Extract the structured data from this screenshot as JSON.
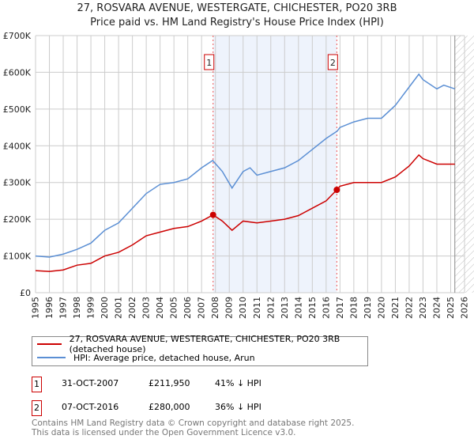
{
  "chart_data": {
    "type": "line",
    "title": "27, ROSVARA AVENUE, WESTERGATE, CHICHESTER, PO20 3RB",
    "subtitle": "Price paid vs. HM Land Registry's House Price Index (HPI)",
    "xlim": [
      1995,
      2026
    ],
    "ylim": [
      0,
      700000
    ],
    "x_ticks": [
      "1995",
      "1996",
      "1997",
      "1998",
      "1999",
      "2000",
      "2001",
      "2002",
      "2003",
      "2004",
      "2005",
      "2006",
      "2007",
      "2008",
      "2009",
      "2010",
      "2011",
      "2012",
      "2013",
      "2014",
      "2015",
      "2016",
      "2017",
      "2018",
      "2019",
      "2020",
      "2021",
      "2022",
      "2023",
      "2024",
      "2025",
      "2026"
    ],
    "y_ticks": [
      {
        "v": 0,
        "label": "£0"
      },
      {
        "v": 100000,
        "label": "£100K"
      },
      {
        "v": 200000,
        "label": "£200K"
      },
      {
        "v": 300000,
        "label": "£300K"
      },
      {
        "v": 400000,
        "label": "£400K"
      },
      {
        "v": 500000,
        "label": "£500K"
      },
      {
        "v": 600000,
        "label": "£600K"
      },
      {
        "v": 700000,
        "label": "£700K"
      }
    ],
    "grid": true,
    "shaded_range": [
      2007.83,
      2016.77
    ],
    "hatched_from": 2025.3,
    "series": [
      {
        "name": "27, ROSVARA AVENUE, WESTERGATE, CHICHESTER, PO20 3RB (detached house)",
        "color": "#cc0000",
        "x": [
          1995,
          1996,
          1997,
          1998,
          1999,
          2000,
          2001,
          2002,
          2003,
          2004,
          2005,
          2006,
          2007,
          2007.83,
          2008.5,
          2009.2,
          2010,
          2011,
          2012,
          2013,
          2014,
          2015,
          2016,
          2016.77,
          2017,
          2018,
          2019,
          2020,
          2021,
          2022,
          2022.7,
          2023,
          2024,
          2025.3
        ],
        "y": [
          60000,
          58000,
          62000,
          75000,
          80000,
          100000,
          110000,
          130000,
          155000,
          165000,
          175000,
          180000,
          195000,
          211950,
          195000,
          170000,
          195000,
          190000,
          195000,
          200000,
          210000,
          230000,
          250000,
          280000,
          290000,
          300000,
          300000,
          300000,
          315000,
          345000,
          375000,
          365000,
          350000,
          350000
        ]
      },
      {
        "name": "HPI: Average price, detached house, Arun",
        "color": "#5b8fd4",
        "x": [
          1995,
          1996,
          1997,
          1998,
          1999,
          2000,
          2001,
          2002,
          2003,
          2004,
          2005,
          2006,
          2007,
          2007.8,
          2008.5,
          2009.2,
          2010,
          2010.5,
          2011,
          2012,
          2013,
          2014,
          2015,
          2016,
          2016.8,
          2017,
          2018,
          2019,
          2020,
          2021,
          2022,
          2022.7,
          2023,
          2024,
          2024.5,
          2025.3
        ],
        "y": [
          100000,
          97000,
          105000,
          118000,
          135000,
          170000,
          190000,
          230000,
          270000,
          295000,
          300000,
          310000,
          340000,
          360000,
          330000,
          285000,
          330000,
          340000,
          320000,
          330000,
          340000,
          360000,
          390000,
          420000,
          440000,
          450000,
          465000,
          475000,
          475000,
          510000,
          560000,
          595000,
          580000,
          555000,
          565000,
          555000
        ]
      }
    ],
    "annotations": [
      {
        "label": "1",
        "x": 2007.83,
        "y": 211950
      },
      {
        "label": "2",
        "x": 2016.77,
        "y": 280000
      }
    ]
  },
  "table": [
    {
      "num": "1",
      "date": "31-OCT-2007",
      "price": "£211,950",
      "hpi": "41% ↓ HPI"
    },
    {
      "num": "2",
      "date": "07-OCT-2016",
      "price": "£280,000",
      "hpi": "36% ↓ HPI"
    }
  ],
  "footer": [
    "Contains HM Land Registry data © Crown copyright and database right 2025.",
    "This data is licensed under the Open Government Licence v3.0."
  ]
}
